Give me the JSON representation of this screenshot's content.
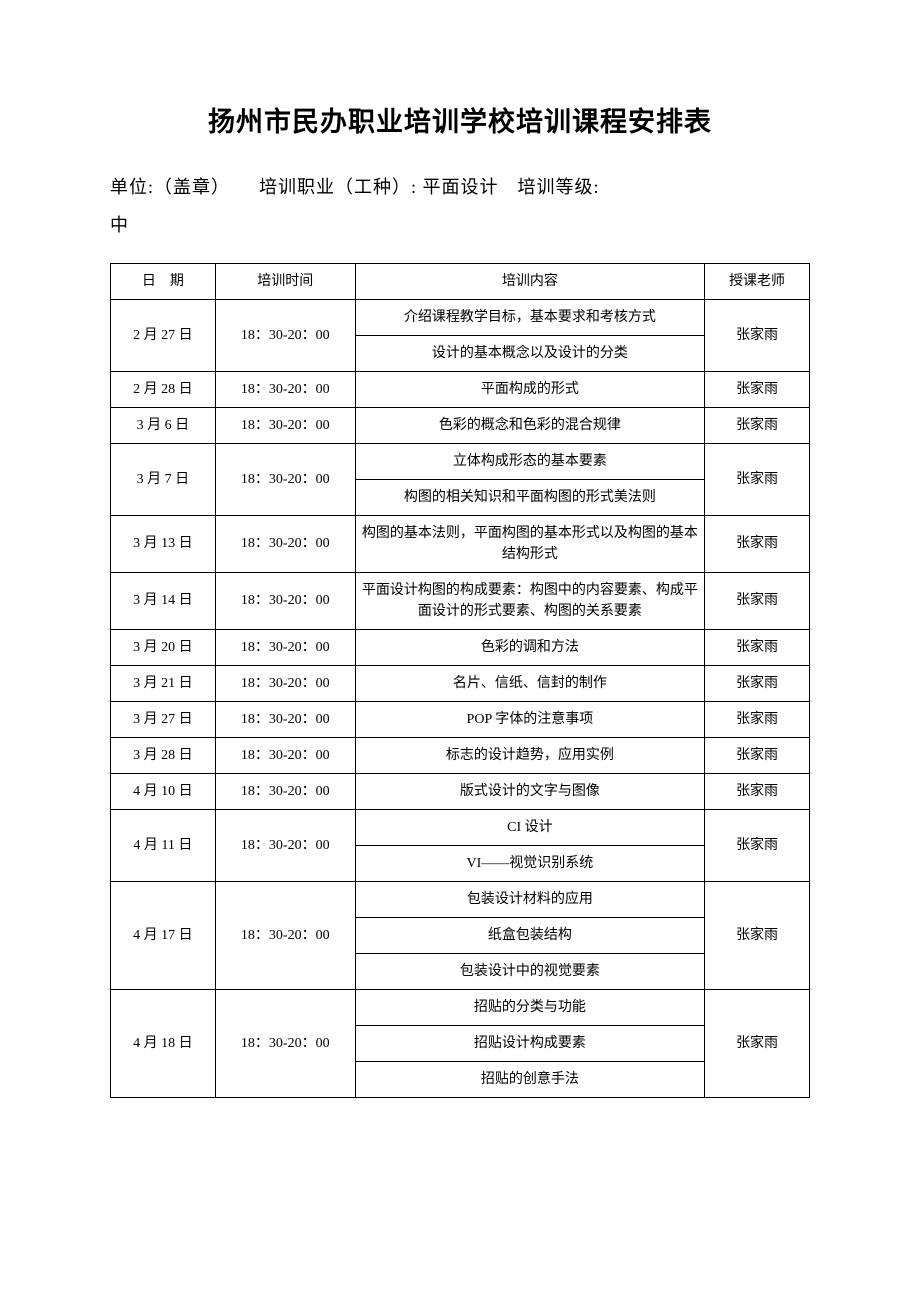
{
  "title": "扬州市民办职业培训学校培训课程安排表",
  "meta": {
    "line1": "单位:（盖章）　　培训职业（工种）: 平面设计　培训等级:",
    "line2": "中"
  },
  "headers": {
    "date": "日　期",
    "time": "培训时间",
    "content": "培训内容",
    "teacher": "授课老师"
  },
  "rows": [
    {
      "date": "2 月 27 日",
      "time": "18：30-20：00",
      "teacher": "张家雨",
      "contents": [
        "介绍课程教学目标，基本要求和考核方式",
        "设计的基本概念以及设计的分类"
      ]
    },
    {
      "date": "2 月 28 日",
      "time": "18：30-20：00",
      "teacher": "张家雨",
      "contents": [
        "平面构成的形式"
      ]
    },
    {
      "date": "3 月 6 日",
      "time": "18：30-20：00",
      "teacher": "张家雨",
      "contents": [
        "色彩的概念和色彩的混合规律"
      ]
    },
    {
      "date": "3 月 7 日",
      "time": "18：30-20：00",
      "teacher": "张家雨",
      "contents": [
        "立体构成形态的基本要素",
        "构图的相关知识和平面构图的形式美法则"
      ]
    },
    {
      "date": "3 月 13 日",
      "time": "18：30-20：00",
      "teacher": "张家雨",
      "contents": [
        "构图的基本法则，平面构图的基本形式以及构图的基本结构形式"
      ]
    },
    {
      "date": "3 月 14 日",
      "time": "18：30-20：00",
      "teacher": "张家雨",
      "contents": [
        "平面设计构图的构成要素：构图中的内容要素、构成平面设计的形式要素、构图的关系要素"
      ]
    },
    {
      "date": "3 月 20 日",
      "time": "18：30-20：00",
      "teacher": "张家雨",
      "contents": [
        "色彩的调和方法"
      ]
    },
    {
      "date": "3 月 21 日",
      "time": "18：30-20：00",
      "teacher": "张家雨",
      "contents": [
        "名片、信纸、信封的制作"
      ]
    },
    {
      "date": "3 月 27 日",
      "time": "18：30-20：00",
      "teacher": "张家雨",
      "contents": [
        "POP 字体的注意事项"
      ]
    },
    {
      "date": "3 月 28 日",
      "time": "18：30-20：00",
      "teacher": "张家雨",
      "contents": [
        "标志的设计趋势，应用实例"
      ]
    },
    {
      "date": "4 月 10 日",
      "time": "18：30-20：00",
      "teacher": "张家雨",
      "contents": [
        "版式设计的文字与图像"
      ]
    },
    {
      "date": "4 月 11 日",
      "time": "18：30-20：00",
      "teacher": "张家雨",
      "contents": [
        "CI 设计",
        "VI——视觉识别系统"
      ]
    },
    {
      "date": "4 月 17 日",
      "time": "18：30-20：00",
      "teacher": "张家雨",
      "contents": [
        "包装设计材料的应用",
        "纸盒包装结构",
        "包装设计中的视觉要素"
      ]
    },
    {
      "date": "4 月 18 日",
      "time": "18：30-20：00",
      "teacher": "张家雨",
      "contents": [
        "招贴的分类与功能",
        "招贴设计构成要素",
        "招贴的创意手法"
      ]
    }
  ],
  "style": {
    "background_color": "#ffffff",
    "text_color": "#000000",
    "border_color": "#000000",
    "title_fontsize": 27,
    "meta_fontsize": 18,
    "table_fontsize": 14,
    "font_family_title": "SimHei",
    "font_family_body": "SimSun",
    "col_widths_pct": [
      15,
      20,
      50,
      15
    ]
  }
}
